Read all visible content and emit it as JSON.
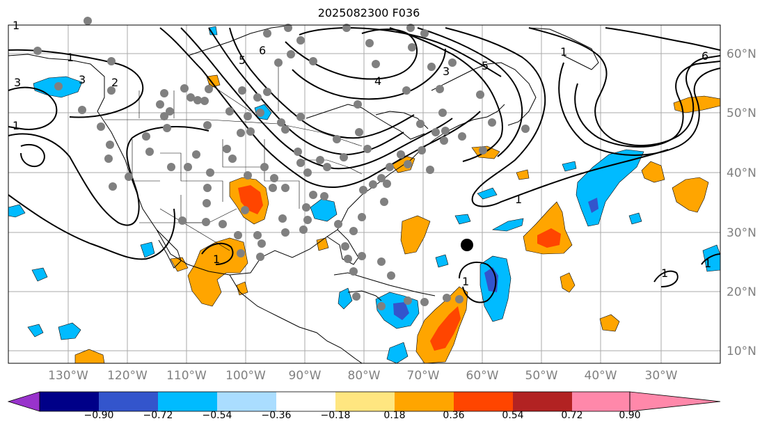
{
  "title": "2025082300 F036",
  "map": {
    "region": "North Atlantic / North America",
    "longitude_labels": [
      "130°W",
      "120°W",
      "110°W",
      "100°W",
      "90°W",
      "80°W",
      "70°W",
      "60°W",
      "50°W",
      "40°W",
      "30°W"
    ],
    "latitude_labels": [
      "60°N",
      "50°N",
      "40°N",
      "30°N",
      "20°N",
      "10°N"
    ],
    "contour_labels": [
      "1",
      "1",
      "2",
      "3",
      "3",
      "4",
      "5",
      "6",
      "3",
      "5",
      "6",
      "1",
      "1",
      "1",
      "1",
      "1",
      "1",
      "1"
    ],
    "station_marker_color": "#808080",
    "center_marker_color": "#000000"
  },
  "colorbar": {
    "tick_labels": [
      "−0.90",
      "−0.72",
      "−0.54",
      "−0.36",
      "−0.18",
      "0.18",
      "0.36",
      "0.54",
      "0.72",
      "0.90"
    ],
    "colors": [
      "#9933cc",
      "#000088",
      "#3355cc",
      "#00bbff",
      "#aaddff",
      "#ffffff",
      "#ffe680",
      "#ffa500",
      "#ff4500",
      "#b22222",
      "#ff88aa"
    ]
  }
}
